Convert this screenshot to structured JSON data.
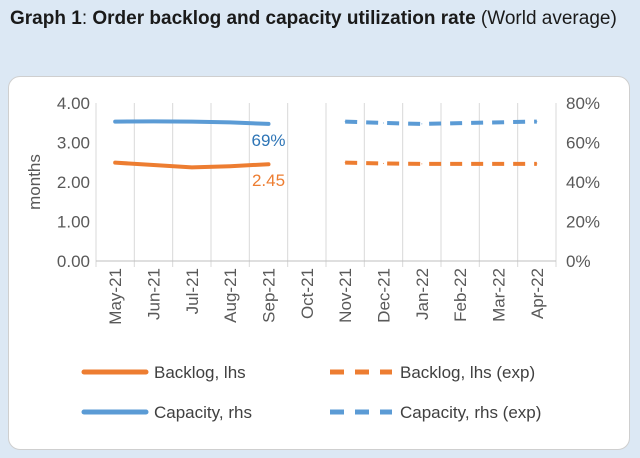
{
  "header": {
    "title_bold": "Graph 1",
    "title_colon": ": ",
    "title_main": "Order backlog and capacity utilization rate",
    "title_suffix": " (World average)"
  },
  "chart_data": {
    "type": "line",
    "categories": [
      "May-21",
      "Jun-21",
      "Jul-21",
      "Aug-21",
      "Sep-21",
      "Oct-21",
      "Nov-21",
      "Dec-21",
      "Jan-22",
      "Feb-22",
      "Mar-22",
      "Apr-22"
    ],
    "ylabel": "months",
    "ylim": [
      0,
      4
    ],
    "y_ticks": [
      "0.00",
      "1.00",
      "2.00",
      "3.00",
      "4.00"
    ],
    "y2lim": [
      0,
      80
    ],
    "y2_ticks": [
      "0%",
      "20%",
      "40%",
      "60%",
      "80%"
    ],
    "grid_vertical": true,
    "legend_position": "bottom",
    "series": [
      {
        "name": "Backlog, lhs",
        "axis": "left",
        "style": "solid",
        "color": "#ed7d31",
        "values": [
          2.49,
          2.43,
          2.37,
          2.4,
          2.45,
          null,
          null,
          null,
          null,
          null,
          null,
          null
        ]
      },
      {
        "name": "Backlog, lhs (exp)",
        "axis": "left",
        "style": "dashed",
        "color": "#ed7d31",
        "values": [
          null,
          null,
          null,
          null,
          null,
          null,
          2.49,
          2.47,
          2.46,
          2.46,
          2.46,
          2.46
        ]
      },
      {
        "name": "Capacity, rhs",
        "axis": "right",
        "style": "solid",
        "color": "#5b9bd5",
        "values": [
          70.6,
          70.7,
          70.6,
          70.2,
          69.4,
          null,
          null,
          null,
          null,
          null,
          null,
          null
        ]
      },
      {
        "name": "Capacity, rhs (exp)",
        "axis": "right",
        "style": "dashed",
        "color": "#5b9bd5",
        "values": [
          null,
          null,
          null,
          null,
          null,
          null,
          70.6,
          69.9,
          69.4,
          69.8,
          70.2,
          70.6
        ]
      }
    ],
    "annotations": [
      {
        "text": "69%",
        "series": 2,
        "index": 4,
        "color": "#2e75b6"
      },
      {
        "text": "2.45",
        "series": 0,
        "index": 4,
        "color": "#ed7d31"
      }
    ]
  }
}
